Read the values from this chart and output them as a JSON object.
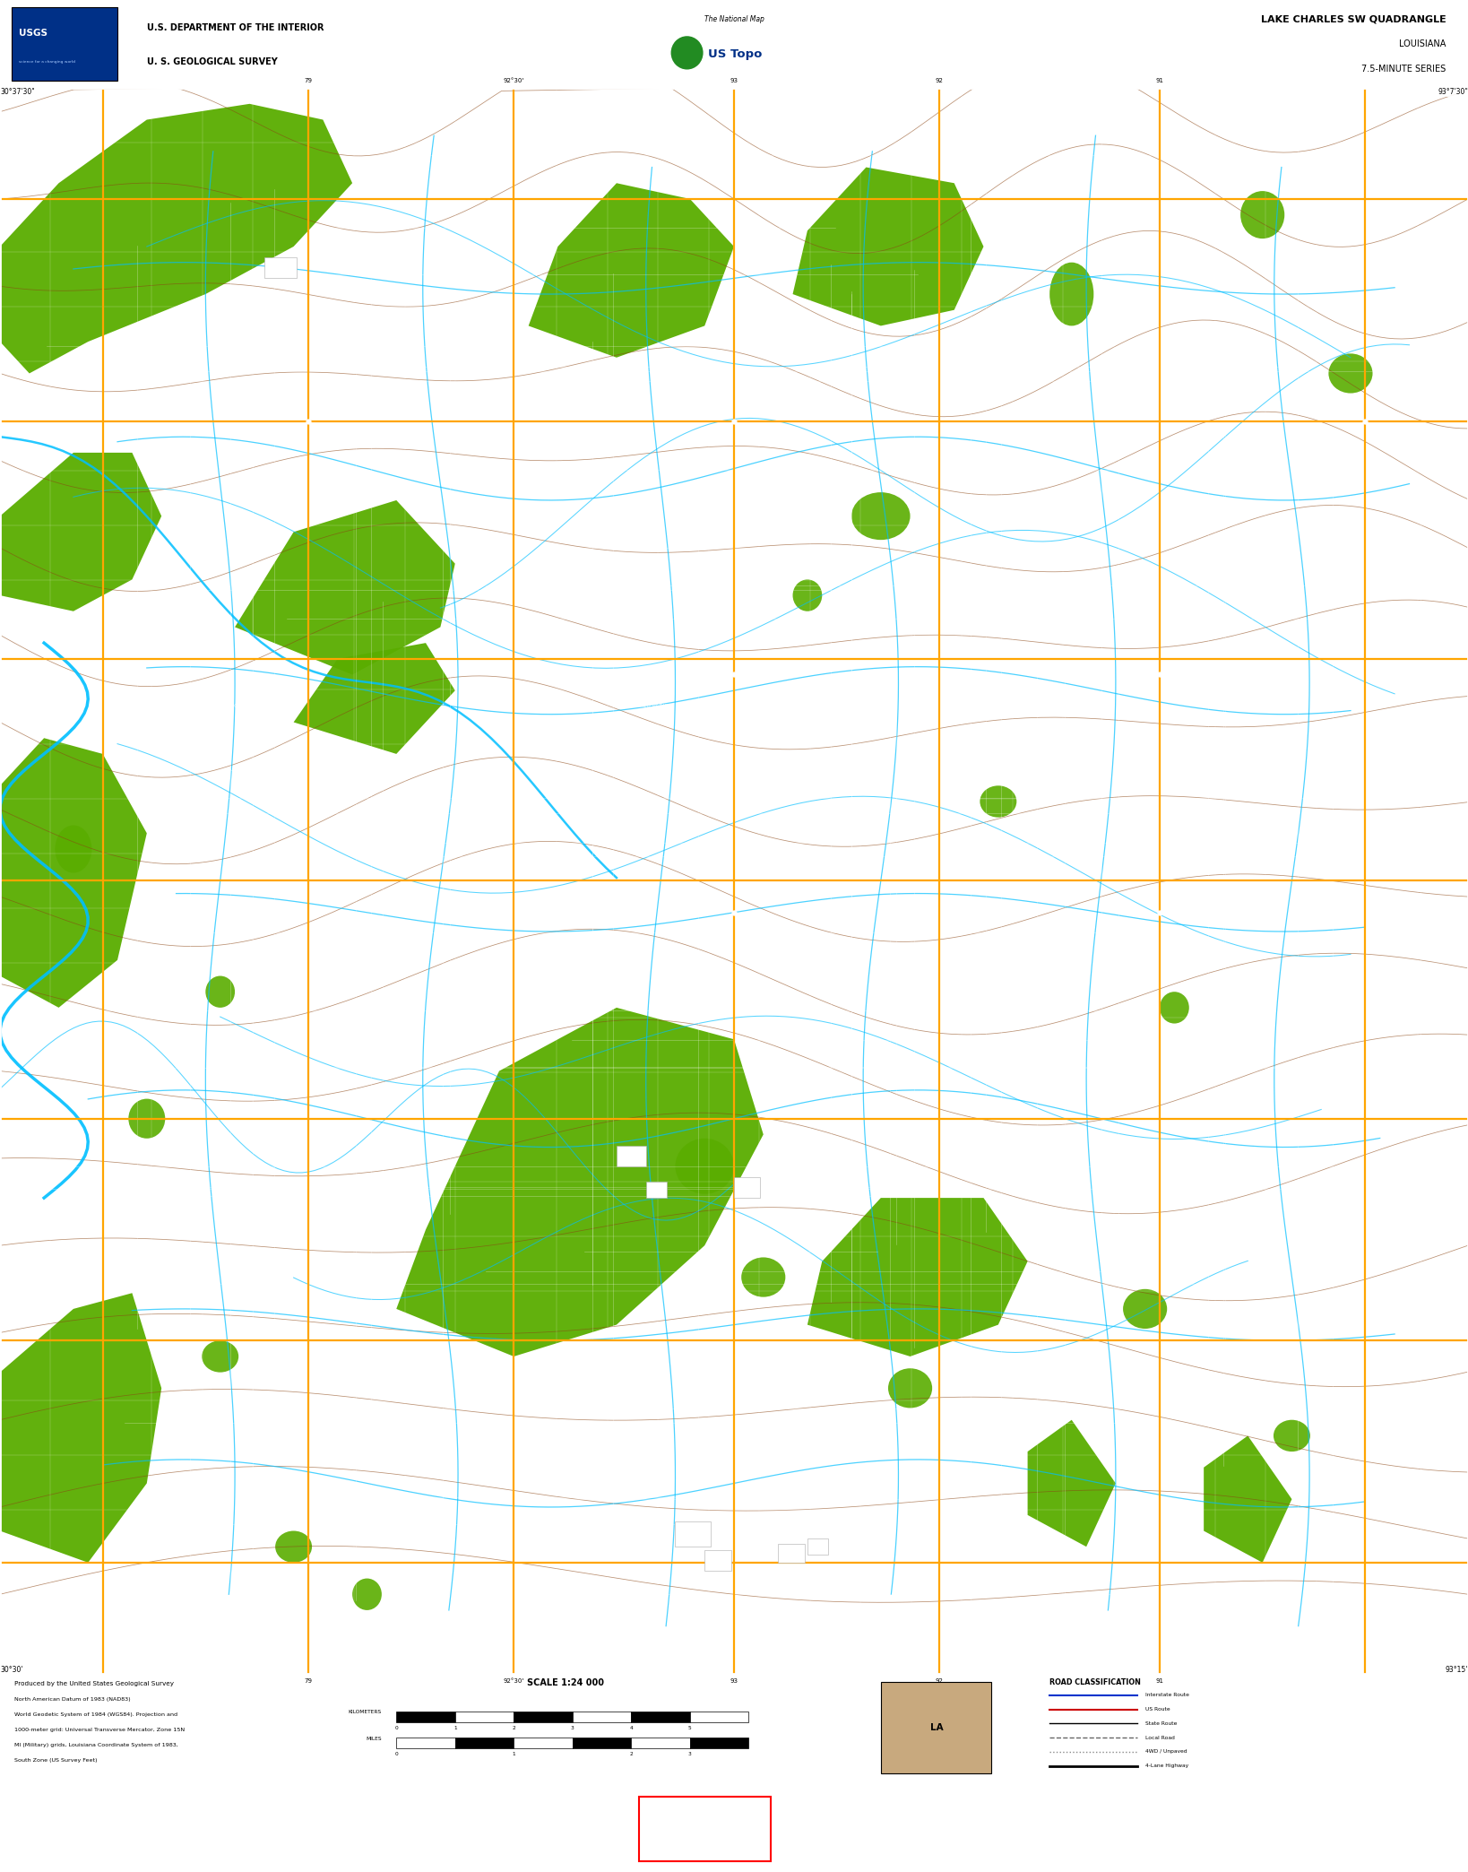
{
  "title_quadrangle": "LAKE CHARLES SW QUADRANGLE",
  "title_state": "LOUISIANA",
  "title_series": "7.5-MINUTE SERIES",
  "scale_text": "SCALE 1:24 000",
  "usgs_dept": "U.S. DEPARTMENT OF THE INTERIOR",
  "usgs_survey": "U. S. GEOLOGICAL SURVEY",
  "header_bg": "#ffffff",
  "map_bg": "#000000",
  "footer_bg": "#ffffff",
  "bottom_bar_bg": "#1a1a1a",
  "vegetation_color": "#5aad00",
  "water_color": "#00bfff",
  "road_primary_color": "#ffa500",
  "contour_color": "#8b4513",
  "topo_line_color": "#00bfff",
  "road_classification_title": "ROAD CLASSIFICATION"
}
